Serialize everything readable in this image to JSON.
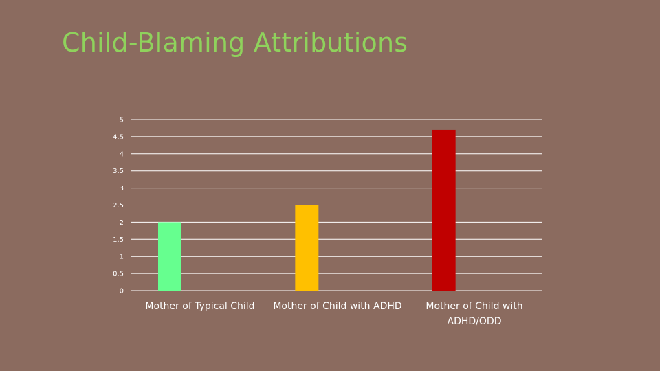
{
  "slide": {
    "title": "Child-Blaming Attributions"
  },
  "chart_data": {
    "type": "bar",
    "title": "",
    "xlabel": "",
    "ylabel": "",
    "ylim": [
      0,
      5
    ],
    "yticks": [
      0,
      0.5,
      1,
      1.5,
      2,
      2.5,
      3,
      3.5,
      4,
      4.5,
      5
    ],
    "grid": true,
    "categories": [
      "Mother of Typical Child",
      "Mother of Child with ADHD",
      "Mother of Child with ADHD/ODD"
    ],
    "category_lines": [
      [
        "Mother of Typical Child"
      ],
      [
        "Mother of Child with ADHD"
      ],
      [
        "Mother of Child with",
        "ADHD/ODD"
      ]
    ],
    "values": [
      2,
      2.5,
      4.7
    ],
    "colors": [
      "#66ff8f",
      "#ffc000",
      "#c00000"
    ],
    "gridline_color": "#ffffff"
  }
}
